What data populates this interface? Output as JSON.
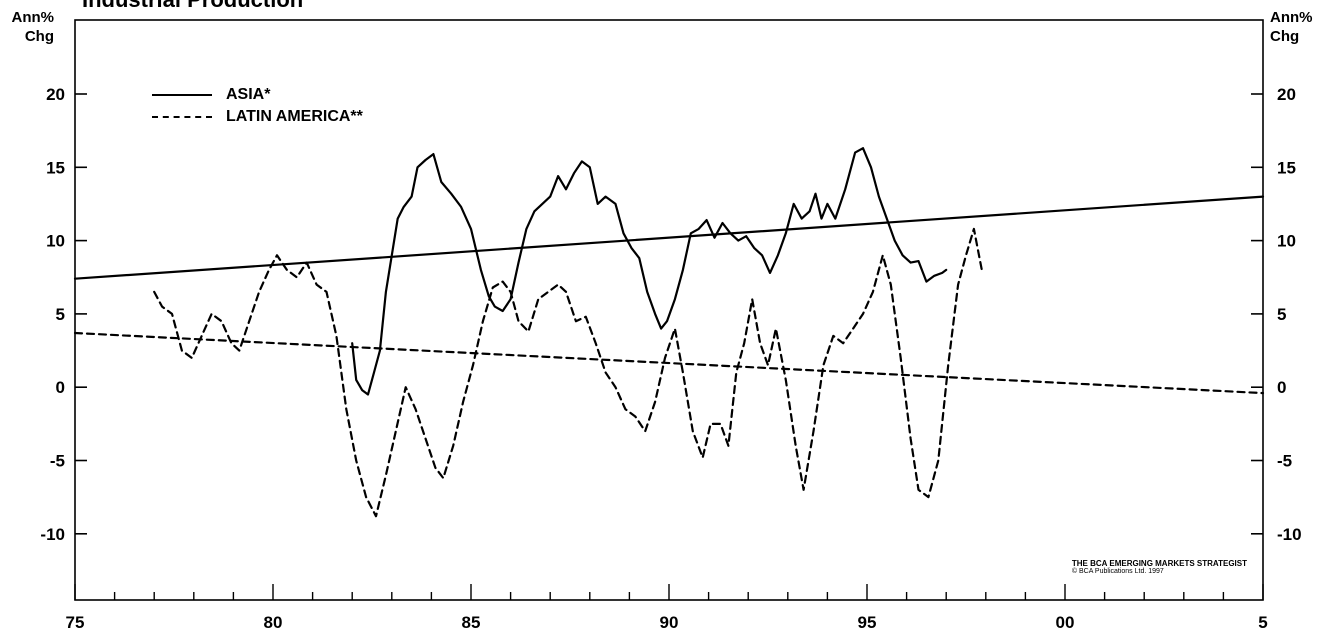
{
  "chart_data": {
    "type": "line",
    "title": "Industrial Production",
    "ylabel_left": "Ann%\nChg",
    "ylabel_right": "Ann%\nChg",
    "xlim": [
      1975,
      2005
    ],
    "ylim": [
      -15,
      25
    ],
    "yticks": [
      20,
      15,
      10,
      5,
      0,
      -5,
      -10
    ],
    "xtick_labels": [
      {
        "x": 1975,
        "label": "75"
      },
      {
        "x": 1980,
        "label": "80"
      },
      {
        "x": 1985,
        "label": "85"
      },
      {
        "x": 1990,
        "label": "90"
      },
      {
        "x": 1995,
        "label": "95"
      },
      {
        "x": 2000,
        "label": "00"
      },
      {
        "x": 2005,
        "label": "5"
      }
    ],
    "minor_xticks_per_year": true,
    "grid": false,
    "legend_position": "top-left",
    "series": [
      {
        "name": "ASIA*",
        "style": "solid",
        "points": [
          [
            1982.0,
            3.0
          ],
          [
            1982.1,
            0.5
          ],
          [
            1982.25,
            -0.2
          ],
          [
            1982.4,
            -0.5
          ],
          [
            1982.55,
            1.0
          ],
          [
            1982.7,
            2.5
          ],
          [
            1982.85,
            6.5
          ],
          [
            1983.0,
            9.0
          ],
          [
            1983.15,
            11.5
          ],
          [
            1983.3,
            12.3
          ],
          [
            1983.5,
            13.0
          ],
          [
            1983.65,
            15.0
          ],
          [
            1983.85,
            15.5
          ],
          [
            1984.05,
            15.9
          ],
          [
            1984.25,
            14.0
          ],
          [
            1984.5,
            13.2
          ],
          [
            1984.75,
            12.3
          ],
          [
            1985.0,
            10.8
          ],
          [
            1985.25,
            8.0
          ],
          [
            1985.45,
            6.2
          ],
          [
            1985.6,
            5.5
          ],
          [
            1985.8,
            5.2
          ],
          [
            1986.0,
            6.0
          ],
          [
            1986.2,
            8.5
          ],
          [
            1986.4,
            10.8
          ],
          [
            1986.6,
            12.0
          ],
          [
            1986.8,
            12.5
          ],
          [
            1987.0,
            13.0
          ],
          [
            1987.2,
            14.4
          ],
          [
            1987.4,
            13.5
          ],
          [
            1987.6,
            14.6
          ],
          [
            1987.8,
            15.4
          ],
          [
            1988.0,
            15.0
          ],
          [
            1988.2,
            12.5
          ],
          [
            1988.4,
            13.0
          ],
          [
            1988.65,
            12.5
          ],
          [
            1988.85,
            10.5
          ],
          [
            1989.05,
            9.5
          ],
          [
            1989.25,
            8.8
          ],
          [
            1989.45,
            6.5
          ],
          [
            1989.65,
            5.0
          ],
          [
            1989.8,
            4.0
          ],
          [
            1989.95,
            4.5
          ],
          [
            1990.15,
            6.0
          ],
          [
            1990.35,
            8.0
          ],
          [
            1990.55,
            10.5
          ],
          [
            1990.75,
            10.8
          ],
          [
            1990.95,
            11.4
          ],
          [
            1991.15,
            10.2
          ],
          [
            1991.35,
            11.2
          ],
          [
            1991.55,
            10.5
          ],
          [
            1991.75,
            10.0
          ],
          [
            1991.95,
            10.3
          ],
          [
            1992.15,
            9.5
          ],
          [
            1992.35,
            9.0
          ],
          [
            1992.55,
            7.8
          ],
          [
            1992.75,
            9.0
          ],
          [
            1992.95,
            10.5
          ],
          [
            1993.15,
            12.5
          ],
          [
            1993.35,
            11.5
          ],
          [
            1993.55,
            12.0
          ],
          [
            1993.7,
            13.2
          ],
          [
            1993.85,
            11.5
          ],
          [
            1994.0,
            12.5
          ],
          [
            1994.2,
            11.5
          ],
          [
            1994.45,
            13.5
          ],
          [
            1994.7,
            16.0
          ],
          [
            1994.9,
            16.3
          ],
          [
            1995.1,
            15.0
          ],
          [
            1995.3,
            13.0
          ],
          [
            1995.5,
            11.5
          ],
          [
            1995.7,
            10.0
          ],
          [
            1995.9,
            9.0
          ],
          [
            1996.1,
            8.5
          ],
          [
            1996.3,
            8.6
          ],
          [
            1996.5,
            7.2
          ],
          [
            1996.7,
            7.6
          ],
          [
            1996.9,
            7.8
          ],
          [
            1997.0,
            8.0
          ]
        ]
      },
      {
        "name": "ASIA* trend",
        "style": "solid",
        "points": [
          [
            1975.0,
            7.4
          ],
          [
            2005.0,
            13.0
          ]
        ]
      },
      {
        "name": "LATIN AMERICA**",
        "style": "dashed",
        "points": [
          [
            1977.0,
            6.5
          ],
          [
            1977.2,
            5.5
          ],
          [
            1977.45,
            5.0
          ],
          [
            1977.7,
            2.5
          ],
          [
            1977.95,
            2.0
          ],
          [
            1978.2,
            3.5
          ],
          [
            1978.45,
            5.0
          ],
          [
            1978.7,
            4.5
          ],
          [
            1978.95,
            3.0
          ],
          [
            1979.15,
            2.5
          ],
          [
            1979.4,
            4.5
          ],
          [
            1979.65,
            6.5
          ],
          [
            1979.9,
            8.0
          ],
          [
            1980.1,
            9.0
          ],
          [
            1980.35,
            8.0
          ],
          [
            1980.6,
            7.5
          ],
          [
            1980.85,
            8.5
          ],
          [
            1981.1,
            7.0
          ],
          [
            1981.35,
            6.5
          ],
          [
            1981.6,
            3.5
          ],
          [
            1981.85,
            -1.5
          ],
          [
            1982.1,
            -5.0
          ],
          [
            1982.35,
            -7.5
          ],
          [
            1982.6,
            -8.8
          ],
          [
            1982.85,
            -6.0
          ],
          [
            1983.1,
            -3.0
          ],
          [
            1983.35,
            0.0
          ],
          [
            1983.6,
            -1.5
          ],
          [
            1983.85,
            -3.5
          ],
          [
            1984.1,
            -5.5
          ],
          [
            1984.3,
            -6.2
          ],
          [
            1984.55,
            -4.0
          ],
          [
            1984.8,
            -1.0
          ],
          [
            1985.05,
            1.5
          ],
          [
            1985.3,
            4.5
          ],
          [
            1985.55,
            6.8
          ],
          [
            1985.8,
            7.2
          ],
          [
            1986.0,
            6.5
          ],
          [
            1986.2,
            4.5
          ],
          [
            1986.45,
            3.8
          ],
          [
            1986.7,
            6.0
          ],
          [
            1986.95,
            6.5
          ],
          [
            1987.2,
            7.0
          ],
          [
            1987.4,
            6.5
          ],
          [
            1987.65,
            4.5
          ],
          [
            1987.9,
            4.8
          ],
          [
            1988.15,
            3.0
          ],
          [
            1988.4,
            1.0
          ],
          [
            1988.65,
            0.0
          ],
          [
            1988.9,
            -1.5
          ],
          [
            1989.15,
            -2.0
          ],
          [
            1989.4,
            -3.0
          ],
          [
            1989.65,
            -1.0
          ],
          [
            1989.9,
            2.0
          ],
          [
            1990.15,
            4.0
          ],
          [
            1990.35,
            1.0
          ],
          [
            1990.6,
            -3.0
          ],
          [
            1990.85,
            -4.8
          ],
          [
            1991.05,
            -2.5
          ],
          [
            1991.3,
            -2.5
          ],
          [
            1991.5,
            -4.0
          ],
          [
            1991.7,
            1.0
          ],
          [
            1991.9,
            3.0
          ],
          [
            1992.1,
            6.0
          ],
          [
            1992.3,
            3.0
          ],
          [
            1992.5,
            1.5
          ],
          [
            1992.7,
            4.0
          ],
          [
            1992.95,
            0.5
          ],
          [
            1993.2,
            -4.0
          ],
          [
            1993.4,
            -7.0
          ],
          [
            1993.65,
            -3.0
          ],
          [
            1993.9,
            1.5
          ],
          [
            1994.15,
            3.5
          ],
          [
            1994.4,
            3.0
          ],
          [
            1994.65,
            4.0
          ],
          [
            1994.9,
            5.0
          ],
          [
            1995.15,
            6.5
          ],
          [
            1995.4,
            9.0
          ],
          [
            1995.6,
            7.0
          ],
          [
            1995.85,
            2.0
          ],
          [
            1996.1,
            -3.5
          ],
          [
            1996.3,
            -7.0
          ],
          [
            1996.55,
            -7.5
          ],
          [
            1996.8,
            -5.0
          ],
          [
            1997.05,
            1.5
          ],
          [
            1997.3,
            7.0
          ],
          [
            1997.5,
            9.0
          ],
          [
            1997.7,
            10.8
          ],
          [
            1997.9,
            8.0
          ]
        ]
      },
      {
        "name": "LATIN AMERICA** trend",
        "style": "dashed",
        "points": [
          [
            1975.0,
            3.7
          ],
          [
            2005.0,
            -0.4
          ]
        ]
      }
    ],
    "legend": [
      {
        "label": "ASIA*",
        "style": "solid"
      },
      {
        "label": "LATIN AMERICA**",
        "style": "dashed"
      }
    ],
    "annotations": [
      "THE BCA EMERGING MARKETS STRATEGIST",
      "© BCA Publications Ltd. 1997"
    ]
  },
  "labels": {
    "title": "Industrial Production",
    "left_unit_line1": "Ann%",
    "left_unit_line2": "Chg",
    "right_unit_line1": "Ann%",
    "right_unit_line2": "Chg",
    "legend_asia": "ASIA*",
    "legend_latam": "LATIN AMERICA**",
    "source_line1": "THE BCA EMERGING MARKETS STRATEGIST",
    "source_line2": "© BCA Publications Ltd. 1997"
  },
  "colors": {
    "ink": "#000000",
    "background": "#ffffff"
  }
}
